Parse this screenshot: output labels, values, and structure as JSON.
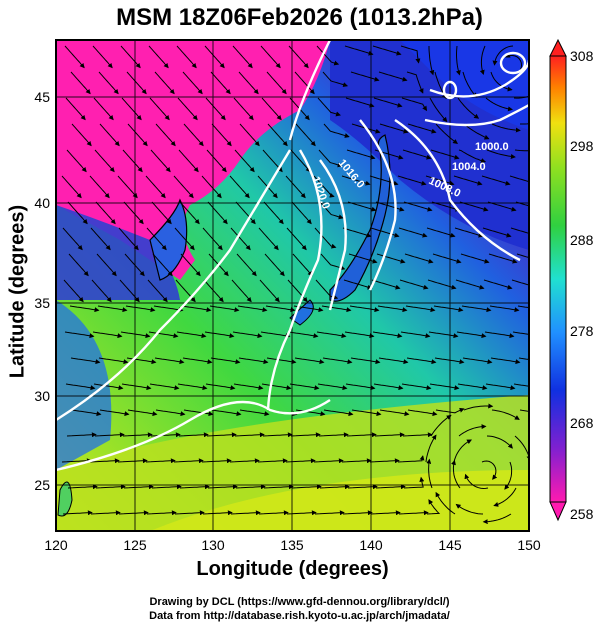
{
  "title": "MSM 18Z06Feb2026 (1013.2hPa)",
  "x_axis": {
    "label": "Longitude (degrees)",
    "ticks": [
      "120",
      "125",
      "130",
      "135",
      "140",
      "145",
      "150"
    ]
  },
  "y_axis": {
    "label": "Latitude  (degrees)",
    "ticks": [
      "25",
      "30",
      "35",
      "40",
      "45"
    ]
  },
  "colorbar": {
    "ticks": [
      "308",
      "298",
      "288",
      "278",
      "268",
      "258"
    ]
  },
  "contours": [
    "1000.0",
    "1004.0",
    "1008.0",
    "1016.0",
    "1020.0"
  ],
  "credits": {
    "line1": "Drawing by DCL (https://www.gfd-dennou.org/library/dcl/)",
    "line2": "Data from http://database.rish.kyoto-u.ac.jp/arch/jmadata/"
  },
  "colors": {
    "warm": "#c8e61e",
    "mid": "#18c878",
    "cool": "#1060e0",
    "cold": "#ff20b0",
    "contour": "#ffffff"
  }
}
